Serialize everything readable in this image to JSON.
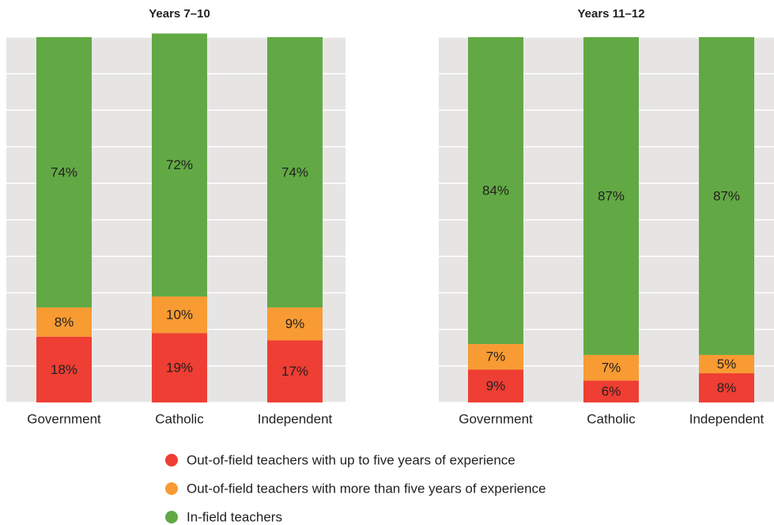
{
  "chart_data": [
    {
      "type": "stacked_bar",
      "title": "Years 7–10",
      "categories": [
        "Government",
        "Catholic",
        "Independent"
      ],
      "ylim": [
        0,
        100
      ],
      "yticks": [
        0,
        10,
        20,
        30,
        40,
        50,
        60,
        70,
        80,
        90,
        100
      ],
      "grid": true,
      "series": [
        {
          "name": "Out-of-field teachers with up to five years of experience",
          "color": "#ef3e33",
          "values": [
            18,
            19,
            17
          ],
          "value_labels": [
            "18%",
            "19%",
            "17%"
          ]
        },
        {
          "name": "Out-of-field teachers with more than five years of experience",
          "color": "#f89b33",
          "values": [
            8,
            10,
            9
          ],
          "value_labels": [
            "8%",
            "10%",
            "9%"
          ]
        },
        {
          "name": "In-field teachers",
          "color": "#62a945",
          "values": [
            74,
            72,
            74
          ],
          "value_labels": [
            "74%",
            "72%",
            "74%"
          ]
        }
      ]
    },
    {
      "type": "stacked_bar",
      "title": "Years 11–12",
      "categories": [
        "Government",
        "Catholic",
        "Independent"
      ],
      "ylim": [
        0,
        100
      ],
      "yticks": [
        0,
        10,
        20,
        30,
        40,
        50,
        60,
        70,
        80,
        90,
        100
      ],
      "grid": true,
      "series": [
        {
          "color": "#ef3e33",
          "values": [
            9,
            6,
            8
          ],
          "value_labels": [
            "9%",
            "6%",
            "8%"
          ]
        },
        {
          "color": "#f89b33",
          "values": [
            7,
            7,
            5
          ],
          "value_labels": [
            "7%",
            "7%",
            "5%"
          ]
        },
        {
          "color": "#62a945",
          "values": [
            84,
            87,
            87
          ],
          "value_labels": [
            "84%",
            "87%",
            "87%"
          ]
        }
      ]
    }
  ]
}
